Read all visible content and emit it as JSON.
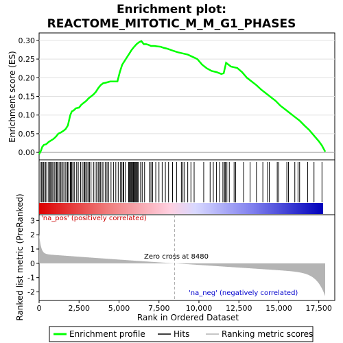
{
  "chart_data": {
    "type": "line",
    "title_line1": "Enrichment plot:",
    "title_line2": "REACTOME_MITOTIC_M_M_G1_PHASES",
    "xlabel": "Rank in Ordered Dataset",
    "ylabel_top": "Enrichment score (ES)",
    "ylabel_bottom": "Ranked list metric (PreRanked)",
    "xlim": [
      0,
      18500
    ],
    "es_ylim": [
      -0.02,
      0.32
    ],
    "metric_ylim": [
      -2.6,
      3.4
    ],
    "x_ticks": [
      0,
      2500,
      5000,
      7500,
      10000,
      12500,
      15000,
      17500
    ],
    "x_tick_labels": [
      "0",
      "2,500",
      "5,000",
      "7,500",
      "10,000",
      "12,500",
      "15,000",
      "17,500"
    ],
    "es_ticks": [
      0.0,
      0.05,
      0.1,
      0.15,
      0.2,
      0.25,
      0.3
    ],
    "es_tick_labels": [
      "0.00",
      "0.05",
      "0.10",
      "0.15",
      "0.20",
      "0.25",
      "0.30"
    ],
    "metric_ticks": [
      -2,
      -1,
      0,
      1,
      2,
      3
    ],
    "metric_tick_labels": [
      "-2",
      "-1",
      "0",
      "1",
      "2",
      "3"
    ],
    "es_curve": {
      "x": [
        0,
        120,
        200,
        300,
        450,
        600,
        750,
        900,
        1050,
        1200,
        1350,
        1500,
        1650,
        1800,
        1950,
        2050,
        2150,
        2300,
        2500,
        2650,
        2800,
        2950,
        3100,
        3250,
        3400,
        3550,
        3700,
        3850,
        4000,
        4200,
        4450,
        4700,
        4900,
        5050,
        5200,
        5350,
        5500,
        5650,
        5800,
        5950,
        6100,
        6250,
        6400,
        6550,
        6700,
        6850,
        7000,
        7200,
        7400,
        7600,
        7800,
        8000,
        8200,
        8400,
        8700,
        9000,
        9300,
        9600,
        9900,
        10200,
        10500,
        10800,
        11100,
        11400,
        11550,
        11700,
        11850,
        12000,
        12200,
        12400,
        12700,
        13000,
        13300,
        13600,
        13900,
        14200,
        14500,
        14800,
        15100,
        15400,
        15700,
        16000,
        16300,
        16600,
        16900,
        17200,
        17500,
        17700,
        17900
      ],
      "y": [
        -0.005,
        0.005,
        0.015,
        0.02,
        0.022,
        0.028,
        0.032,
        0.036,
        0.042,
        0.05,
        0.053,
        0.057,
        0.062,
        0.072,
        0.1,
        0.11,
        0.112,
        0.118,
        0.12,
        0.128,
        0.133,
        0.138,
        0.145,
        0.15,
        0.155,
        0.162,
        0.172,
        0.18,
        0.185,
        0.187,
        0.19,
        0.19,
        0.19,
        0.215,
        0.235,
        0.245,
        0.255,
        0.265,
        0.275,
        0.283,
        0.29,
        0.295,
        0.298,
        0.29,
        0.29,
        0.288,
        0.285,
        0.285,
        0.284,
        0.283,
        0.28,
        0.278,
        0.275,
        0.272,
        0.268,
        0.265,
        0.262,
        0.256,
        0.25,
        0.235,
        0.225,
        0.218,
        0.215,
        0.21,
        0.212,
        0.24,
        0.235,
        0.23,
        0.228,
        0.226,
        0.215,
        0.2,
        0.19,
        0.18,
        0.168,
        0.158,
        0.148,
        0.138,
        0.125,
        0.115,
        0.105,
        0.095,
        0.085,
        0.072,
        0.06,
        0.045,
        0.03,
        0.018,
        0.002
      ]
    },
    "hits": [
      120,
      170,
      250,
      300,
      400,
      480,
      600,
      650,
      720,
      800,
      860,
      950,
      1050,
      1100,
      1150,
      1250,
      1350,
      1420,
      1500,
      1620,
      1680,
      1780,
      1850,
      1950,
      2000,
      2050,
      2120,
      2200,
      2350,
      2450,
      2600,
      2700,
      2800,
      2850,
      2920,
      3000,
      3080,
      3150,
      3250,
      3400,
      3500,
      3600,
      3700,
      3780,
      3850,
      3950,
      4050,
      4150,
      4250,
      4350,
      4500,
      4650,
      4800,
      4950,
      5100,
      5150,
      5250,
      5300,
      5400,
      5600,
      5650,
      5700,
      5750,
      5800,
      5850,
      5900,
      5950,
      6000,
      6050,
      6100,
      6150,
      6200,
      6350,
      6450,
      6600,
      6900,
      7000,
      7100,
      7300,
      7500,
      7700,
      7900,
      8100,
      8350,
      8600,
      8900,
      9000,
      9100,
      9300,
      9500,
      9700,
      10300,
      10700,
      10900,
      11100,
      11300,
      11500,
      11600,
      11650,
      11750,
      11900,
      12200,
      12300,
      12800,
      13200,
      13600,
      14000,
      14300,
      14400,
      14900,
      15000,
      15500,
      15600,
      16000,
      16200,
      16300,
      16800,
      17200,
      17700
    ],
    "zero_cross": 8480,
    "zero_cross_label": "Zero cross at 8480",
    "pos_label": "'na_pos' (positively correlated)",
    "neg_label": "'na_neg' (negatively correlated)",
    "legend": [
      "Enrichment profile",
      "Hits",
      "Ranking metric scores"
    ],
    "colors": {
      "es_line": "#00ff00",
      "hits": "#000000",
      "metric_fill": "#b4b4b4",
      "pos_text": "#cc0000",
      "neg_text": "#0000cc",
      "zero_line": "#aaaaaa"
    }
  }
}
